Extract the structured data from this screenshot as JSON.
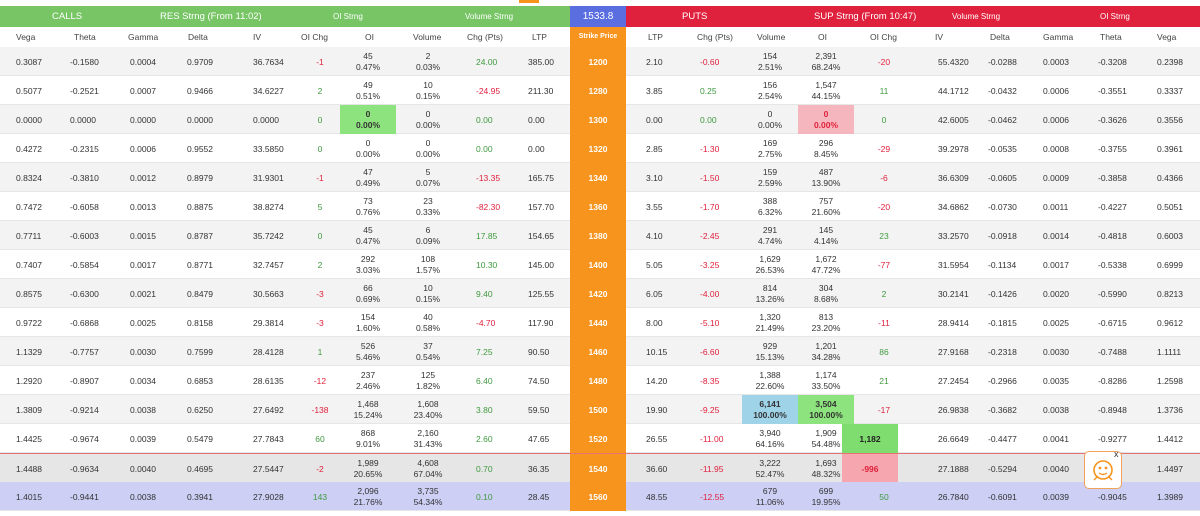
{
  "header": {
    "calls": "CALLS",
    "res_strng": "RES Strng (From 11:02)",
    "calls_oi_strng": "OI Strng",
    "calls_vol_strng": "Volume Strng",
    "spot": "1533.8",
    "puts": "PUTS",
    "sup_strng": "SUP Strng (From 10:47)",
    "puts_vol_strng": "Volume Strng",
    "puts_oi_strng": "OI Strng"
  },
  "columns": {
    "calls": [
      "Vega",
      "Theta",
      "Gamma",
      "Delta",
      "IV",
      "OI Chg",
      "OI",
      "Volume",
      "Chg (Pts)",
      "LTP"
    ],
    "strike": "Strike Price",
    "puts": [
      "LTP",
      "Chg (Pts)",
      "Volume",
      "OI",
      "OI Chg",
      "IV",
      "Delta",
      "Gamma",
      "Theta",
      "Vega"
    ]
  },
  "rows": [
    {
      "strike": "1200",
      "c": {
        "vega": "0.3087",
        "theta": "-0.1580",
        "gamma": "0.0004",
        "delta": "0.9709",
        "iv": "36.7634",
        "oichg": "-1",
        "oi": "45",
        "oi_pct": "0.47%",
        "vol": "2",
        "vol_pct": "0.03%",
        "chg": "24.00",
        "ltp": "385.00"
      },
      "p": {
        "ltp": "2.10",
        "chg": "-0.60",
        "vol": "154",
        "vol_pct": "2.51%",
        "oi": "2,391",
        "oi_pct": "68.24%",
        "oichg": "-20",
        "iv": "55.4320",
        "delta": "-0.0288",
        "gamma": "0.0003",
        "theta": "-0.3208",
        "vega": "0.2398"
      }
    },
    {
      "strike": "1280",
      "c": {
        "vega": "0.5077",
        "theta": "-0.2521",
        "gamma": "0.0007",
        "delta": "0.9466",
        "iv": "34.6227",
        "oichg": "2",
        "oi": "49",
        "oi_pct": "0.51%",
        "vol": "10",
        "vol_pct": "0.15%",
        "chg": "-24.95",
        "ltp": "211.30"
      },
      "p": {
        "ltp": "3.85",
        "chg": "0.25",
        "vol": "156",
        "vol_pct": "2.54%",
        "oi": "1,547",
        "oi_pct": "44.15%",
        "oichg": "11",
        "iv": "44.1712",
        "delta": "-0.0432",
        "gamma": "0.0006",
        "theta": "-0.3551",
        "vega": "0.3337"
      }
    },
    {
      "strike": "1300",
      "c": {
        "vega": "0.0000",
        "theta": "0.0000",
        "gamma": "0.0000",
        "delta": "0.0000",
        "iv": "0.0000",
        "oichg": "0",
        "oi": "0",
        "oi_pct": "0.00%",
        "vol": "0",
        "vol_pct": "0.00%",
        "chg": "0.00",
        "ltp": "0.00"
      },
      "p": {
        "ltp": "0.00",
        "chg": "0.00",
        "vol": "0",
        "vol_pct": "0.00%",
        "oi": "0",
        "oi_pct": "0.00%",
        "oichg": "0",
        "iv": "42.6005",
        "delta": "-0.0462",
        "gamma": "0.0006",
        "theta": "-0.3626",
        "vega": "0.3556"
      }
    },
    {
      "strike": "1320",
      "c": {
        "vega": "0.4272",
        "theta": "-0.2315",
        "gamma": "0.0006",
        "delta": "0.9552",
        "iv": "33.5850",
        "oichg": "0",
        "oi": "0",
        "oi_pct": "0.00%",
        "vol": "0",
        "vol_pct": "0.00%",
        "chg": "0.00",
        "ltp": "0.00"
      },
      "p": {
        "ltp": "2.85",
        "chg": "-1.30",
        "vol": "169",
        "vol_pct": "2.75%",
        "oi": "296",
        "oi_pct": "8.45%",
        "oichg": "-29",
        "iv": "39.2978",
        "delta": "-0.0535",
        "gamma": "0.0008",
        "theta": "-0.3755",
        "vega": "0.3961"
      }
    },
    {
      "strike": "1340",
      "c": {
        "vega": "0.8324",
        "theta": "-0.3810",
        "gamma": "0.0012",
        "delta": "0.8979",
        "iv": "31.9301",
        "oichg": "-1",
        "oi": "47",
        "oi_pct": "0.49%",
        "vol": "5",
        "vol_pct": "0.07%",
        "chg": "-13.35",
        "ltp": "165.75"
      },
      "p": {
        "ltp": "3.10",
        "chg": "-1.50",
        "vol": "159",
        "vol_pct": "2.59%",
        "oi": "487",
        "oi_pct": "13.90%",
        "oichg": "-6",
        "iv": "36.6309",
        "delta": "-0.0605",
        "gamma": "0.0009",
        "theta": "-0.3858",
        "vega": "0.4366"
      }
    },
    {
      "strike": "1360",
      "c": {
        "vega": "0.7472",
        "theta": "-0.6058",
        "gamma": "0.0013",
        "delta": "0.8875",
        "iv": "38.8274",
        "oichg": "5",
        "oi": "73",
        "oi_pct": "0.76%",
        "vol": "23",
        "vol_pct": "0.33%",
        "chg": "-82.30",
        "ltp": "157.70"
      },
      "p": {
        "ltp": "3.55",
        "chg": "-1.70",
        "vol": "388",
        "vol_pct": "6.32%",
        "oi": "757",
        "oi_pct": "21.60%",
        "oichg": "-20",
        "iv": "34.6862",
        "delta": "-0.0730",
        "gamma": "0.0011",
        "theta": "-0.4227",
        "vega": "0.5051"
      }
    },
    {
      "strike": "1380",
      "c": {
        "vega": "0.7711",
        "theta": "-0.6003",
        "gamma": "0.0015",
        "delta": "0.8787",
        "iv": "35.7242",
        "oichg": "0",
        "oi": "45",
        "oi_pct": "0.47%",
        "vol": "6",
        "vol_pct": "0.09%",
        "chg": "17.85",
        "ltp": "154.65"
      },
      "p": {
        "ltp": "4.10",
        "chg": "-2.45",
        "vol": "291",
        "vol_pct": "4.74%",
        "oi": "145",
        "oi_pct": "4.14%",
        "oichg": "23",
        "iv": "33.2570",
        "delta": "-0.0918",
        "gamma": "0.0014",
        "theta": "-0.4818",
        "vega": "0.6003"
      }
    },
    {
      "strike": "1400",
      "c": {
        "vega": "0.7407",
        "theta": "-0.5854",
        "gamma": "0.0017",
        "delta": "0.8771",
        "iv": "32.7457",
        "oichg": "2",
        "oi": "292",
        "oi_pct": "3.03%",
        "vol": "108",
        "vol_pct": "1.57%",
        "chg": "10.30",
        "ltp": "145.00"
      },
      "p": {
        "ltp": "5.05",
        "chg": "-3.25",
        "vol": "1,629",
        "vol_pct": "26.53%",
        "oi": "1,672",
        "oi_pct": "47.72%",
        "oichg": "-77",
        "iv": "31.5954",
        "delta": "-0.1134",
        "gamma": "0.0017",
        "theta": "-0.5338",
        "vega": "0.6999"
      }
    },
    {
      "strike": "1420",
      "c": {
        "vega": "0.8575",
        "theta": "-0.6300",
        "gamma": "0.0021",
        "delta": "0.8479",
        "iv": "30.5663",
        "oichg": "-3",
        "oi": "66",
        "oi_pct": "0.69%",
        "vol": "10",
        "vol_pct": "0.15%",
        "chg": "9.40",
        "ltp": "125.55"
      },
      "p": {
        "ltp": "6.05",
        "chg": "-4.00",
        "vol": "814",
        "vol_pct": "13.26%",
        "oi": "304",
        "oi_pct": "8.68%",
        "oichg": "2",
        "iv": "30.2141",
        "delta": "-0.1426",
        "gamma": "0.0020",
        "theta": "-0.5990",
        "vega": "0.8213"
      }
    },
    {
      "strike": "1440",
      "c": {
        "vega": "0.9722",
        "theta": "-0.6868",
        "gamma": "0.0025",
        "delta": "0.8158",
        "iv": "29.3814",
        "oichg": "-3",
        "oi": "154",
        "oi_pct": "1.60%",
        "vol": "40",
        "vol_pct": "0.58%",
        "chg": "-4.70",
        "ltp": "117.90"
      },
      "p": {
        "ltp": "8.00",
        "chg": "-5.10",
        "vol": "1,320",
        "vol_pct": "21.49%",
        "oi": "813",
        "oi_pct": "23.20%",
        "oichg": "-11",
        "iv": "28.9414",
        "delta": "-0.1815",
        "gamma": "0.0025",
        "theta": "-0.6715",
        "vega": "0.9612"
      }
    },
    {
      "strike": "1460",
      "c": {
        "vega": "1.1329",
        "theta": "-0.7757",
        "gamma": "0.0030",
        "delta": "0.7599",
        "iv": "28.4128",
        "oichg": "1",
        "oi": "526",
        "oi_pct": "5.46%",
        "vol": "37",
        "vol_pct": "0.54%",
        "chg": "7.25",
        "ltp": "90.50"
      },
      "p": {
        "ltp": "10.15",
        "chg": "-6.60",
        "vol": "929",
        "vol_pct": "15.13%",
        "oi": "1,201",
        "oi_pct": "34.28%",
        "oichg": "86",
        "iv": "27.9168",
        "delta": "-0.2318",
        "gamma": "0.0030",
        "theta": "-0.7488",
        "vega": "1.1111"
      }
    },
    {
      "strike": "1480",
      "c": {
        "vega": "1.2920",
        "theta": "-0.8907",
        "gamma": "0.0034",
        "delta": "0.6853",
        "iv": "28.6135",
        "oichg": "-12",
        "oi": "237",
        "oi_pct": "2.46%",
        "vol": "125",
        "vol_pct": "1.82%",
        "chg": "6.40",
        "ltp": "74.50"
      },
      "p": {
        "ltp": "14.20",
        "chg": "-8.35",
        "vol": "1,388",
        "vol_pct": "22.60%",
        "oi": "1,174",
        "oi_pct": "33.50%",
        "oichg": "21",
        "iv": "27.2454",
        "delta": "-0.2966",
        "gamma": "0.0035",
        "theta": "-0.8286",
        "vega": "1.2598"
      }
    },
    {
      "strike": "1500",
      "c": {
        "vega": "1.3809",
        "theta": "-0.9214",
        "gamma": "0.0038",
        "delta": "0.6250",
        "iv": "27.6492",
        "oichg": "-138",
        "oi": "1,468",
        "oi_pct": "15.24%",
        "vol": "1,608",
        "vol_pct": "23.40%",
        "chg": "3.80",
        "ltp": "59.50"
      },
      "p": {
        "ltp": "19.90",
        "chg": "-9.25",
        "vol": "6,141",
        "vol_pct": "100.00%",
        "oi": "3,504",
        "oi_pct": "100.00%",
        "oichg": "-17",
        "iv": "26.9838",
        "delta": "-0.3682",
        "gamma": "0.0038",
        "theta": "-0.8948",
        "vega": "1.3736"
      }
    },
    {
      "strike": "1520",
      "c": {
        "vega": "1.4425",
        "theta": "-0.9674",
        "gamma": "0.0039",
        "delta": "0.5479",
        "iv": "27.7843",
        "oichg": "60",
        "oi": "868",
        "oi_pct": "9.01%",
        "vol": "2,160",
        "vol_pct": "31.43%",
        "chg": "2.60",
        "ltp": "47.65"
      },
      "p": {
        "ltp": "26.55",
        "chg": "-11.00",
        "vol": "3,940",
        "vol_pct": "64.16%",
        "oi": "1,909",
        "oi_pct": "54.48%",
        "oichg": "1,182",
        "iv": "26.6649",
        "delta": "-0.4477",
        "gamma": "0.0041",
        "theta": "-0.9277",
        "vega": "1.4412"
      }
    },
    {
      "strike": "1540",
      "c": {
        "vega": "1.4488",
        "theta": "-0.9634",
        "gamma": "0.0040",
        "delta": "0.4695",
        "iv": "27.5447",
        "oichg": "-2",
        "oi": "1,989",
        "oi_pct": "20.65%",
        "vol": "4,608",
        "vol_pct": "67.04%",
        "chg": "0.70",
        "ltp": "36.35"
      },
      "p": {
        "ltp": "36.60",
        "chg": "-11.95",
        "vol": "3,222",
        "vol_pct": "52.47%",
        "oi": "1,693",
        "oi_pct": "48.32%",
        "oichg": "-996",
        "iv": "27.1888",
        "delta": "-0.5294",
        "gamma": "0.0040",
        "theta": "",
        "vega": "1.4497"
      }
    },
    {
      "strike": "1560",
      "c": {
        "vega": "1.4015",
        "theta": "-0.9441",
        "gamma": "0.0038",
        "delta": "0.3941",
        "iv": "27.9028",
        "oichg": "143",
        "oi": "2,096",
        "oi_pct": "21.76%",
        "vol": "3,735",
        "vol_pct": "54.34%",
        "chg": "0.10",
        "ltp": "28.45"
      },
      "p": {
        "ltp": "48.55",
        "chg": "-12.55",
        "vol": "679",
        "vol_pct": "11.06%",
        "oi": "699",
        "oi_pct": "19.95%",
        "oichg": "50",
        "iv": "26.7840",
        "delta": "-0.6091",
        "gamma": "0.0039",
        "theta": "-0.9045",
        "vega": "1.3989"
      }
    }
  ],
  "widget": {
    "close": "x",
    "icon": "calculator-bot-icon"
  },
  "colors": {
    "calls_header": "#77c565",
    "puts_header": "#e0213d",
    "spot": "#5b6ee0",
    "strike": "#f7941d"
  }
}
